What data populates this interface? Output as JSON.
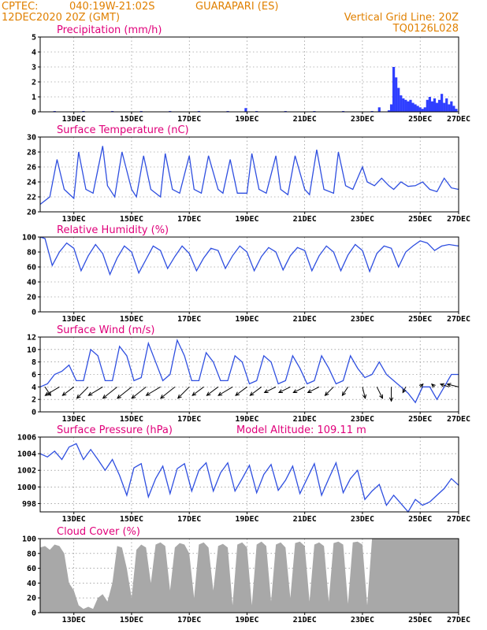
{
  "header": {
    "source": "CPTEC:",
    "coords": "040:19W-21:02S",
    "location": "GUARAPARI (ES)",
    "datetime": "12DEC2020 20Z (GMT)",
    "grid_note": "Vertical Grid Line: 20Z",
    "code": "TQ0126L028"
  },
  "colors": {
    "line": "#2f4fe0",
    "bar": "#2f3fff",
    "cloud": "#a8a8a8",
    "header": "#e08000",
    "title": "#e0007a"
  },
  "x_axis": {
    "start_hour": 0,
    "end_hour": 348,
    "ticks": [
      {
        "label": "13DEC",
        "hour": 28
      },
      {
        "label": "15DEC",
        "hour": 76
      },
      {
        "label": "17DEC",
        "hour": 124
      },
      {
        "label": "19DEC",
        "hour": 172
      },
      {
        "label": "21DEC",
        "hour": 220
      },
      {
        "label": "23DEC",
        "hour": 268
      },
      {
        "label": "25DEC",
        "hour": 316
      },
      {
        "label": "27DEC",
        "hour": 348
      }
    ]
  },
  "chart_data": [
    {
      "key": "precip",
      "type": "bar",
      "title": "Precipitation (mm/h)",
      "ylim": [
        0,
        5
      ],
      "yticks": [
        0,
        1,
        2,
        3,
        4,
        5
      ],
      "grid": true,
      "x": [
        12,
        36,
        60,
        84,
        108,
        132,
        156,
        171,
        180,
        204,
        228,
        252,
        276,
        282,
        290,
        292,
        294,
        296,
        298,
        300,
        302,
        304,
        306,
        308,
        310,
        312,
        314,
        316,
        318,
        320,
        322,
        324,
        326,
        328,
        330,
        332,
        334,
        336,
        338,
        340,
        342,
        344,
        346
      ],
      "values": [
        0.05,
        0.05,
        0.05,
        0.05,
        0.05,
        0.05,
        0.05,
        0.25,
        0.05,
        0.05,
        0.05,
        0.05,
        0.05,
        0.3,
        0.1,
        0.5,
        3.0,
        2.3,
        1.6,
        1.1,
        0.9,
        0.8,
        0.7,
        0.8,
        0.6,
        0.5,
        0.4,
        0.3,
        0.2,
        0.3,
        0.8,
        1.0,
        0.7,
        0.9,
        0.6,
        0.8,
        1.2,
        0.6,
        0.9,
        0.5,
        0.7,
        0.4,
        0.2
      ]
    },
    {
      "key": "temp",
      "type": "line",
      "title": "Surface Temperature (nC)",
      "ylim": [
        20,
        30
      ],
      "yticks": [
        20,
        22,
        24,
        26,
        28,
        30
      ],
      "grid": true,
      "x": [
        0,
        8,
        14,
        20,
        28,
        32,
        38,
        44,
        52,
        56,
        62,
        68,
        76,
        80,
        86,
        92,
        100,
        104,
        110,
        116,
        124,
        128,
        134,
        140,
        148,
        152,
        158,
        164,
        172,
        176,
        182,
        188,
        196,
        200,
        206,
        212,
        220,
        224,
        230,
        236,
        244,
        248,
        254,
        260,
        268,
        272,
        278,
        284,
        290,
        294,
        300,
        306,
        312,
        318,
        324,
        330,
        336,
        342,
        348
      ],
      "values": [
        21,
        22,
        27,
        23,
        21.8,
        28,
        23,
        22.5,
        28.8,
        23.5,
        22,
        28,
        23,
        22,
        27.5,
        23,
        22,
        27.8,
        23,
        22.5,
        27.5,
        23,
        22.5,
        27.5,
        23,
        22.5,
        27,
        22.5,
        22.5,
        27.8,
        23,
        22.5,
        27.5,
        23,
        22.3,
        27.5,
        23,
        22.3,
        28.3,
        23,
        22.5,
        28,
        23.5,
        23,
        26,
        24,
        23.5,
        24.5,
        23.5,
        23,
        24,
        23.4,
        23.5,
        24,
        23,
        22.7,
        24.5,
        23.2,
        23
      ]
    },
    {
      "key": "rh",
      "type": "line",
      "title": "Relative Humidity (%)",
      "ylim": [
        0,
        100
      ],
      "yticks": [
        0,
        20,
        40,
        60,
        80,
        100
      ],
      "grid": true,
      "x": [
        0,
        4,
        10,
        16,
        22,
        28,
        34,
        40,
        46,
        52,
        58,
        64,
        70,
        76,
        82,
        88,
        94,
        100,
        106,
        112,
        118,
        124,
        130,
        136,
        142,
        148,
        154,
        160,
        166,
        172,
        178,
        184,
        190,
        196,
        202,
        208,
        214,
        220,
        226,
        232,
        238,
        244,
        250,
        256,
        262,
        268,
        274,
        280,
        286,
        292,
        298,
        304,
        310,
        316,
        322,
        328,
        334,
        340,
        348
      ],
      "values": [
        100,
        98,
        62,
        80,
        92,
        85,
        55,
        75,
        90,
        78,
        50,
        72,
        88,
        80,
        52,
        70,
        88,
        82,
        58,
        74,
        88,
        78,
        55,
        72,
        85,
        82,
        58,
        75,
        88,
        80,
        55,
        74,
        86,
        80,
        56,
        75,
        86,
        82,
        55,
        75,
        88,
        80,
        55,
        76,
        90,
        82,
        54,
        78,
        88,
        85,
        60,
        80,
        88,
        95,
        92,
        82,
        88,
        90,
        88
      ]
    },
    {
      "key": "wind",
      "type": "line",
      "title": "Surface Wind (m/s)",
      "ylim": [
        0,
        12
      ],
      "yticks": [
        0,
        2,
        4,
        6,
        8,
        10,
        12
      ],
      "grid": true,
      "x": [
        0,
        6,
        12,
        18,
        24,
        30,
        36,
        42,
        48,
        54,
        60,
        66,
        72,
        78,
        84,
        90,
        96,
        102,
        108,
        114,
        120,
        126,
        132,
        138,
        144,
        150,
        156,
        162,
        168,
        174,
        180,
        186,
        192,
        198,
        204,
        210,
        216,
        222,
        228,
        234,
        240,
        246,
        252,
        258,
        264,
        270,
        276,
        282,
        288,
        294,
        300,
        306,
        312,
        318,
        324,
        330,
        336,
        342,
        348
      ],
      "values": [
        4,
        4.5,
        6,
        6.5,
        7.5,
        5,
        5,
        10,
        9,
        5,
        5,
        10.5,
        9,
        5,
        5.5,
        11,
        8,
        5,
        6,
        11.5,
        9,
        5,
        5,
        9.5,
        8,
        5,
        5,
        9,
        8,
        4.5,
        5,
        9,
        8,
        4.5,
        5,
        9,
        7,
        4.5,
        5,
        9,
        7,
        4.5,
        5,
        9,
        7,
        5.5,
        6,
        8,
        6,
        5,
        4,
        3,
        1.5,
        4,
        4,
        2,
        4,
        6,
        6
      ],
      "arrows": [
        {
          "hour": 4,
          "u": 2,
          "v": -3
        },
        {
          "hour": 16,
          "u": -5,
          "v": -3
        },
        {
          "hour": 28,
          "u": -4,
          "v": -3
        },
        {
          "hour": 40,
          "u": -4,
          "v": -4
        },
        {
          "hour": 52,
          "u": -5,
          "v": -3
        },
        {
          "hour": 64,
          "u": -5,
          "v": -4
        },
        {
          "hour": 76,
          "u": -5,
          "v": -4
        },
        {
          "hour": 88,
          "u": -5,
          "v": -4
        },
        {
          "hour": 100,
          "u": -5,
          "v": -3
        },
        {
          "hour": 112,
          "u": -5,
          "v": -4
        },
        {
          "hour": 124,
          "u": -4,
          "v": -4
        },
        {
          "hour": 136,
          "u": -4,
          "v": -3
        },
        {
          "hour": 148,
          "u": -4,
          "v": -3
        },
        {
          "hour": 160,
          "u": -5,
          "v": -3
        },
        {
          "hour": 172,
          "u": -4,
          "v": -3
        },
        {
          "hour": 184,
          "u": -4,
          "v": -3
        },
        {
          "hour": 196,
          "u": -4,
          "v": -2
        },
        {
          "hour": 208,
          "u": -4,
          "v": -2
        },
        {
          "hour": 220,
          "u": -4,
          "v": -2
        },
        {
          "hour": 232,
          "u": -4,
          "v": -2
        },
        {
          "hour": 244,
          "u": -3,
          "v": -3
        },
        {
          "hour": 256,
          "u": -2,
          "v": -3
        },
        {
          "hour": 268,
          "u": 1,
          "v": -4
        },
        {
          "hour": 280,
          "u": 2,
          "v": -4
        },
        {
          "hour": 292,
          "u": 0,
          "v": -5
        },
        {
          "hour": 304,
          "u": -1,
          "v": -2
        },
        {
          "hour": 316,
          "u": 1,
          "v": 1
        },
        {
          "hour": 328,
          "u": -1,
          "v": 1
        },
        {
          "hour": 340,
          "u": -3,
          "v": 1
        },
        {
          "hour": 348,
          "u": -4,
          "v": 1
        }
      ]
    },
    {
      "key": "pres",
      "type": "line",
      "title": "Surface Pressure (hPa)",
      "note": "Model Altitude: 109.11 m",
      "ylim": [
        997,
        1006
      ],
      "yticks": [
        998,
        1000,
        1002,
        1004,
        1006
      ],
      "grid": true,
      "x": [
        0,
        6,
        12,
        18,
        24,
        30,
        36,
        42,
        48,
        54,
        60,
        66,
        72,
        78,
        84,
        90,
        96,
        102,
        108,
        114,
        120,
        126,
        132,
        138,
        144,
        150,
        156,
        162,
        168,
        174,
        180,
        186,
        192,
        198,
        204,
        210,
        216,
        222,
        228,
        234,
        240,
        246,
        252,
        258,
        264,
        270,
        276,
        282,
        288,
        294,
        300,
        306,
        312,
        318,
        324,
        330,
        336,
        342,
        348
      ],
      "values": [
        1004,
        1003.6,
        1004.3,
        1003.3,
        1004.8,
        1005.2,
        1003.3,
        1004.5,
        1003.3,
        1002,
        1003.3,
        1001.4,
        999,
        1002.3,
        1002.8,
        998.8,
        1001,
        1002.5,
        999.2,
        1002.2,
        1002.8,
        999.5,
        1002,
        1002.9,
        999.5,
        1001.7,
        1002.9,
        999.5,
        1001,
        1002.6,
        999.3,
        1001.5,
        1002.7,
        999.6,
        1000.8,
        1002.5,
        999.2,
        1001,
        1002.8,
        999,
        1001,
        1002.9,
        999.3,
        1001,
        1002,
        998.5,
        999.5,
        1000.3,
        997.8,
        999,
        998,
        997,
        998.5,
        997.8,
        998.2,
        999,
        999.8,
        1001,
        1000.2
      ]
    },
    {
      "key": "cloud",
      "type": "area",
      "title": "Cloud Cover (%)",
      "ylim": [
        0,
        100
      ],
      "yticks": [
        0,
        20,
        40,
        60,
        80,
        100
      ],
      "grid": true,
      "x": [
        0,
        4,
        8,
        12,
        16,
        20,
        24,
        28,
        32,
        36,
        40,
        44,
        48,
        52,
        56,
        60,
        64,
        68,
        72,
        76,
        80,
        84,
        88,
        92,
        96,
        100,
        104,
        108,
        112,
        116,
        120,
        124,
        128,
        132,
        136,
        140,
        144,
        148,
        152,
        156,
        160,
        164,
        168,
        172,
        176,
        180,
        184,
        188,
        192,
        196,
        200,
        204,
        208,
        212,
        216,
        220,
        224,
        228,
        232,
        236,
        240,
        244,
        248,
        252,
        256,
        260,
        264,
        268,
        272,
        276,
        280,
        284,
        288,
        292,
        296,
        300,
        304,
        308,
        312,
        316,
        320,
        324,
        328,
        332,
        336,
        340,
        344,
        348
      ],
      "values": [
        88,
        90,
        85,
        92,
        90,
        80,
        40,
        30,
        10,
        5,
        8,
        5,
        20,
        25,
        15,
        40,
        90,
        88,
        60,
        20,
        85,
        92,
        88,
        40,
        92,
        95,
        90,
        30,
        88,
        94,
        92,
        80,
        20,
        92,
        95,
        88,
        30,
        90,
        93,
        88,
        10,
        92,
        95,
        88,
        10,
        92,
        96,
        90,
        15,
        92,
        95,
        88,
        20,
        94,
        96,
        90,
        15,
        92,
        95,
        90,
        15,
        94,
        96,
        92,
        12,
        95,
        96,
        92,
        10,
        100,
        100,
        100,
        100,
        100,
        100,
        100,
        100,
        100,
        100,
        100,
        100,
        100,
        100,
        100,
        100,
        100,
        100,
        100
      ]
    }
  ]
}
